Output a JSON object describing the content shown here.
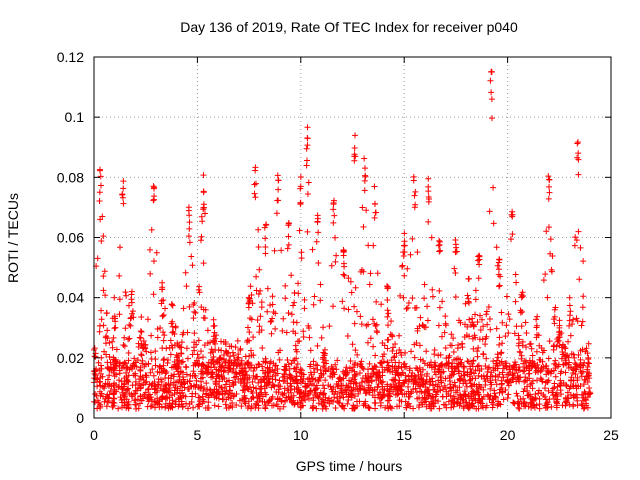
{
  "chart_data": {
    "type": "scatter",
    "title": "Day 136 of 2019, Rate Of TEC Index for receiver p040",
    "xlabel": "GPS time / hours",
    "ylabel": "ROTI / TECUs",
    "xlim": [
      0,
      25
    ],
    "ylim": [
      0,
      0.12
    ],
    "x_ticks": [
      0,
      5,
      10,
      15,
      20,
      25
    ],
    "x_tick_labels": [
      "0",
      "5",
      "10",
      "15",
      "20",
      "25"
    ],
    "y_ticks": [
      0,
      0.02,
      0.04,
      0.06,
      0.08,
      0.1,
      0.12
    ],
    "y_tick_labels": [
      "0",
      "0.02",
      "0.04",
      "0.06",
      "0.08",
      "0.1",
      "0.12"
    ],
    "grid": true,
    "marker": "+",
    "marker_color": "#ff0000",
    "series": [
      {
        "name": "ROTI",
        "base_band": [
          0.003,
          0.018
        ],
        "activity_envelope": [
          {
            "x": 0.0,
            "y": 0.025
          },
          {
            "x": 0.3,
            "y": 0.083
          },
          {
            "x": 0.6,
            "y": 0.035
          },
          {
            "x": 1.0,
            "y": 0.04
          },
          {
            "x": 1.4,
            "y": 0.079
          },
          {
            "x": 1.8,
            "y": 0.045
          },
          {
            "x": 2.3,
            "y": 0.035
          },
          {
            "x": 2.9,
            "y": 0.081
          },
          {
            "x": 3.3,
            "y": 0.05
          },
          {
            "x": 3.8,
            "y": 0.04
          },
          {
            "x": 4.6,
            "y": 0.071
          },
          {
            "x": 5.3,
            "y": 0.081
          },
          {
            "x": 5.8,
            "y": 0.035
          },
          {
            "x": 6.5,
            "y": 0.025
          },
          {
            "x": 7.5,
            "y": 0.04
          },
          {
            "x": 7.8,
            "y": 0.085
          },
          {
            "x": 8.3,
            "y": 0.065
          },
          {
            "x": 8.9,
            "y": 0.081
          },
          {
            "x": 9.4,
            "y": 0.065
          },
          {
            "x": 10.0,
            "y": 0.082
          },
          {
            "x": 10.3,
            "y": 0.097
          },
          {
            "x": 10.8,
            "y": 0.07
          },
          {
            "x": 11.6,
            "y": 0.075
          },
          {
            "x": 12.1,
            "y": 0.06
          },
          {
            "x": 12.6,
            "y": 0.097
          },
          {
            "x": 13.1,
            "y": 0.087
          },
          {
            "x": 13.6,
            "y": 0.077
          },
          {
            "x": 14.2,
            "y": 0.045
          },
          {
            "x": 15.0,
            "y": 0.065
          },
          {
            "x": 15.5,
            "y": 0.082
          },
          {
            "x": 16.2,
            "y": 0.08
          },
          {
            "x": 16.7,
            "y": 0.065
          },
          {
            "x": 17.5,
            "y": 0.06
          },
          {
            "x": 18.1,
            "y": 0.05
          },
          {
            "x": 18.6,
            "y": 0.055
          },
          {
            "x": 19.2,
            "y": 0.116
          },
          {
            "x": 19.6,
            "y": 0.055
          },
          {
            "x": 20.2,
            "y": 0.07
          },
          {
            "x": 20.7,
            "y": 0.045
          },
          {
            "x": 21.4,
            "y": 0.035
          },
          {
            "x": 22.0,
            "y": 0.082
          },
          {
            "x": 22.5,
            "y": 0.035
          },
          {
            "x": 23.0,
            "y": 0.04
          },
          {
            "x": 23.4,
            "y": 0.092
          },
          {
            "x": 23.9,
            "y": 0.025
          }
        ]
      }
    ]
  }
}
